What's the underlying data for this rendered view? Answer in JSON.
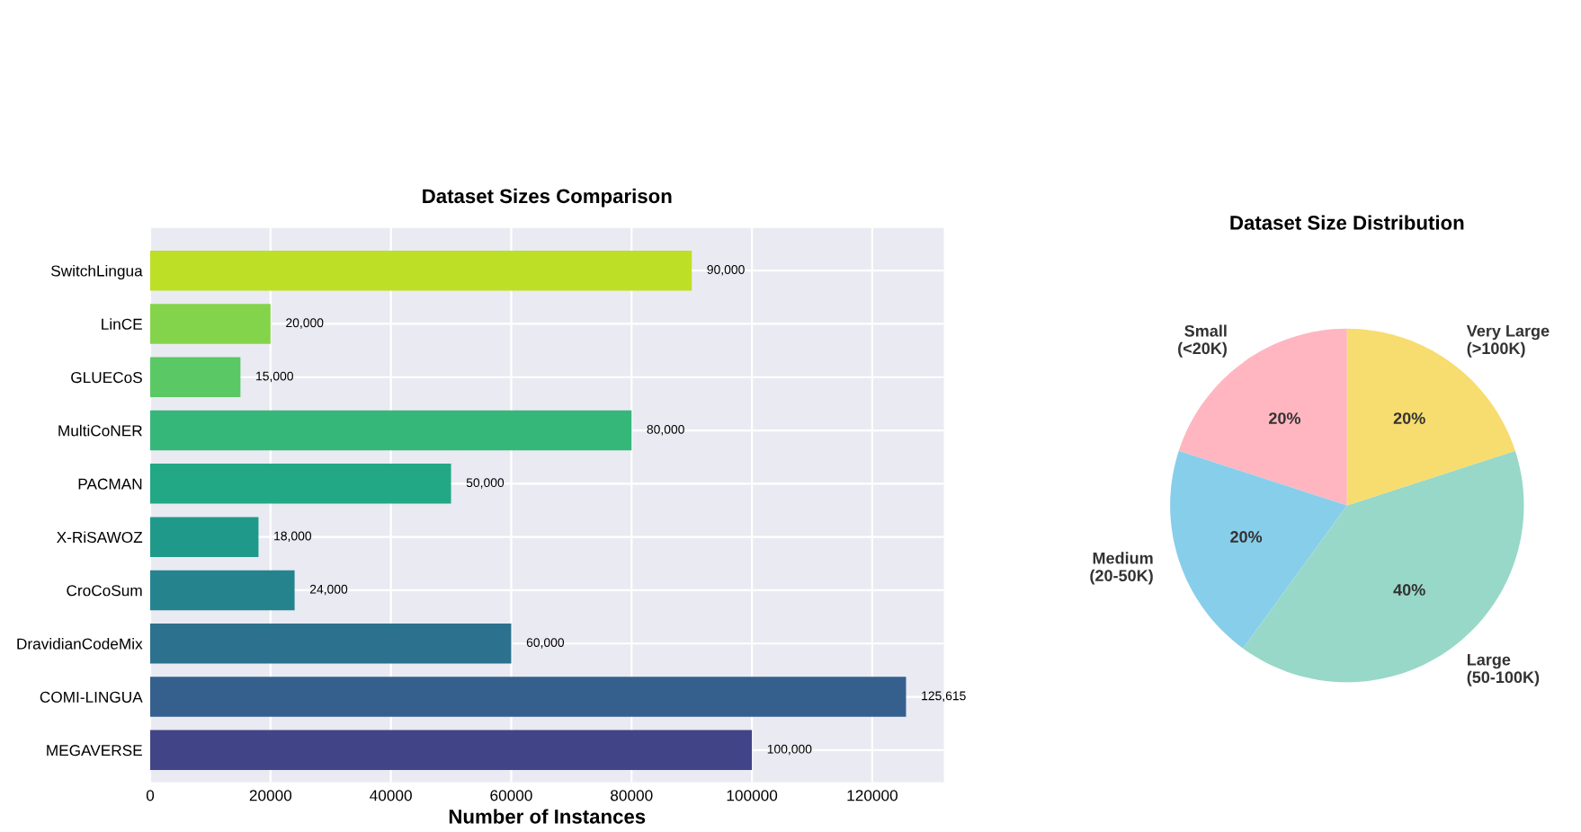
{
  "chart_data": [
    {
      "type": "bar",
      "orientation": "horizontal",
      "title": "Dataset Sizes Comparison",
      "xlabel": "Number of Instances",
      "categories": [
        "SwitchLingua",
        "LinCE",
        "GLUECoS",
        "MultiCoNER",
        "PACMAN",
        "X-RiSAWOZ",
        "CroCoSum",
        "DravidianCodeMix",
        "COMI-LINGUA",
        "MEGAVERSE"
      ],
      "values": [
        90000,
        20000,
        15000,
        80000,
        50000,
        18000,
        24000,
        60000,
        125615,
        100000
      ],
      "value_labels": [
        "90,000",
        "20,000",
        "15,000",
        "80,000",
        "50,000",
        "18,000",
        "24,000",
        "60,000",
        "125,615",
        "100,000"
      ],
      "colors": [
        "#bddf26",
        "#84d44b",
        "#5ac864",
        "#35b779",
        "#22a884",
        "#1f9a8a",
        "#25838e",
        "#2c718e",
        "#355f8d",
        "#414487"
      ],
      "xlim": [
        0,
        131900
      ],
      "xticks": [
        0,
        20000,
        40000,
        60000,
        80000,
        100000,
        120000
      ],
      "grid": true
    },
    {
      "type": "pie",
      "title": "Dataset Size Distribution",
      "categories": [
        "Small\n(<20K)",
        "Medium\n(20-50K)",
        "Large\n(50-100K)",
        "Very Large\n(>100K)"
      ],
      "values": [
        20,
        20,
        40,
        20
      ],
      "value_labels": [
        "20%",
        "20%",
        "40%",
        "20%"
      ],
      "colors": [
        "#ffb6c1",
        "#87ceeb",
        "#98d8c8",
        "#f7dc6f"
      ]
    }
  ]
}
